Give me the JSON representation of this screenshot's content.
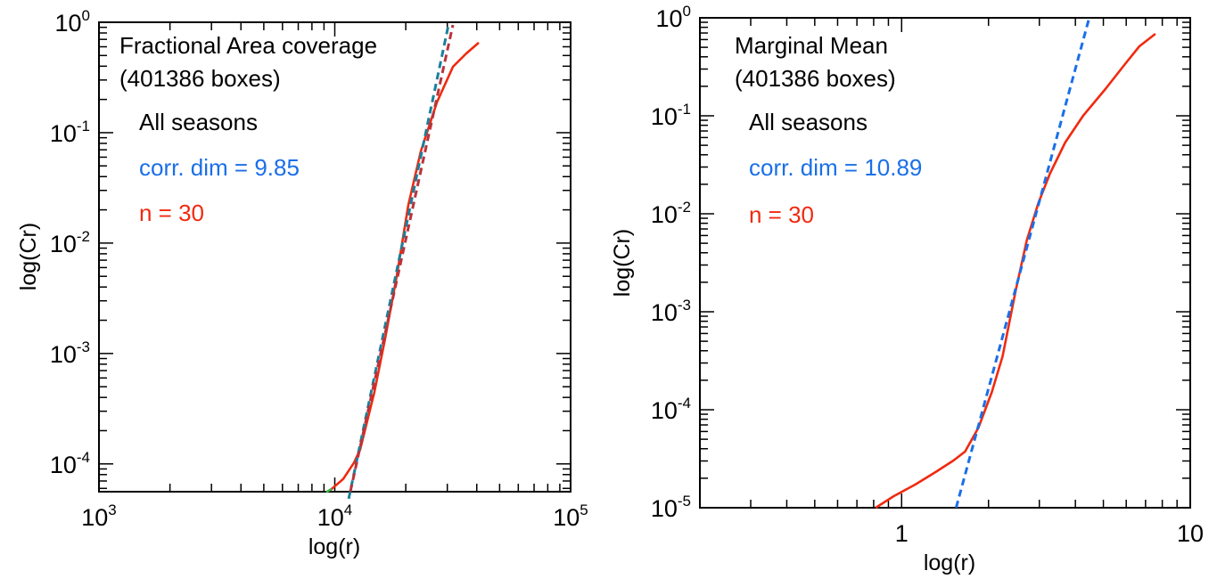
{
  "chart_data": [
    {
      "type": "line",
      "id": "left",
      "title_lines": [
        "Fractional Area coverage",
        "(401386 boxes)"
      ],
      "annotations": [
        {
          "text": "All seasons",
          "color": "#000000"
        },
        {
          "text": "corr. dim = 9.85",
          "color": "#1a6fe8"
        },
        {
          "text": "n = 30",
          "color": "#f02a10"
        }
      ],
      "xlabel": "log(r)",
      "ylabel": "log(Cr)",
      "xscale": "log",
      "yscale": "log",
      "xlim": [
        1000,
        100000
      ],
      "ylim": [
        5.6e-05,
        1
      ],
      "x_ticks": [
        {
          "base": "10",
          "exp": "3",
          "value": 1000
        },
        {
          "base": "10",
          "exp": "4",
          "value": 10000
        },
        {
          "base": "10",
          "exp": "5",
          "value": 100000
        }
      ],
      "y_ticks": [
        {
          "base": "10",
          "exp": "0",
          "value": 1
        },
        {
          "base": "10",
          "exp": "-1",
          "value": 0.1
        },
        {
          "base": "10",
          "exp": "-2",
          "value": 0.01
        },
        {
          "base": "10",
          "exp": "-3",
          "value": 0.001
        },
        {
          "base": "10",
          "exp": "-4",
          "value": 0.0001
        }
      ],
      "grid": false,
      "series": [
        {
          "name": "Cr (n = 30)",
          "style": "solid",
          "color": "#f02a10",
          "x": [
            9520,
            10860,
            12050,
            12820,
            14730,
            16360,
            18320,
            20510,
            23170,
            27100,
            31700,
            36100,
            40800
          ],
          "y": [
            5.73e-05,
            7.3e-05,
            0.000102,
            0.000135,
            0.00045,
            0.00137,
            0.00503,
            0.0222,
            0.0677,
            0.188,
            0.395,
            0.522,
            0.653
          ]
        },
        {
          "name": "small-r segment",
          "style": "solid",
          "color": "#3cb54a",
          "x": [
            9200,
            9700
          ],
          "y": [
            5.55e-05,
            5.94e-05
          ]
        },
        {
          "name": "power-law fit (teal)",
          "style": "dashed",
          "color": "#1a7f9c",
          "x": [
            11450,
            30340
          ],
          "y": [
            4.84e-05,
            0.946
          ]
        },
        {
          "name": "power-law fit (dark red)",
          "style": "dashed",
          "color": "#b8343c",
          "x": [
            11650,
            31700
          ],
          "y": [
            5.62e-05,
            0.946
          ]
        }
      ]
    },
    {
      "type": "line",
      "id": "right",
      "title_lines": [
        "Marginal Mean",
        "(401386 boxes)"
      ],
      "annotations": [
        {
          "text": "All seasons",
          "color": "#000000"
        },
        {
          "text": "corr. dim = 10.89",
          "color": "#1a6fe8"
        },
        {
          "text": "n = 30",
          "color": "#f02a10"
        }
      ],
      "xlabel": "log(r)",
      "ylabel": "log(Cr)",
      "xscale": "log",
      "yscale": "log",
      "xlim": [
        0.2,
        10
      ],
      "ylim": [
        1e-05,
        1
      ],
      "x_ticks": [
        {
          "base": "1",
          "exp": "",
          "value": 1
        },
        {
          "base": "10",
          "exp": "",
          "value": 10
        }
      ],
      "y_ticks": [
        {
          "base": "10",
          "exp": "0",
          "value": 1
        },
        {
          "base": "10",
          "exp": "-1",
          "value": 0.1
        },
        {
          "base": "10",
          "exp": "-2",
          "value": 0.01
        },
        {
          "base": "10",
          "exp": "-3",
          "value": 0.001
        },
        {
          "base": "10",
          "exp": "-4",
          "value": 0.0001
        },
        {
          "base": "10",
          "exp": "-5",
          "value": 1e-05
        }
      ],
      "grid": false,
      "series": [
        {
          "name": "Cr (n = 30)",
          "style": "solid",
          "color": "#f02a10",
          "x": [
            0.813,
            0.938,
            1.113,
            1.311,
            1.512,
            1.659,
            1.846,
            2.054,
            2.238,
            2.49,
            2.713,
            2.977,
            3.265,
            3.687,
            4.252,
            5.08,
            5.94,
            6.66,
            7.57
          ],
          "y": [
            1e-05,
            1.31e-05,
            1.72e-05,
            2.31e-05,
            3.03e-05,
            3.74e-05,
            6.58e-05,
            0.000152,
            0.000351,
            0.00169,
            0.00534,
            0.01285,
            0.02564,
            0.0534,
            0.1,
            0.1874,
            0.337,
            0.512,
            0.686
          ]
        },
        {
          "name": "power-law fit",
          "style": "dashed",
          "color": "#1a6fe8",
          "x": [
            1.545,
            4.467
          ],
          "y": [
            1e-05,
            1
          ]
        }
      ]
    }
  ]
}
